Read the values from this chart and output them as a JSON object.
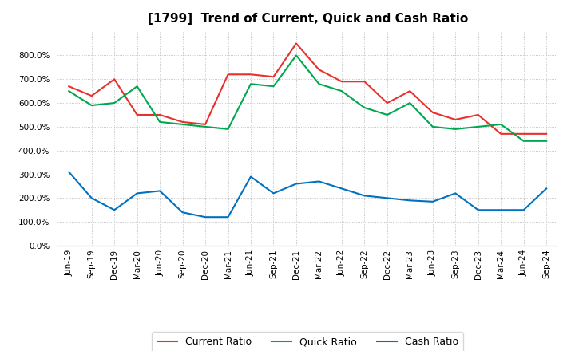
{
  "title": "[1799]  Trend of Current, Quick and Cash Ratio",
  "labels": [
    "Jun-19",
    "Sep-19",
    "Dec-19",
    "Mar-20",
    "Jun-20",
    "Sep-20",
    "Dec-20",
    "Mar-21",
    "Jun-21",
    "Sep-21",
    "Dec-21",
    "Mar-22",
    "Jun-22",
    "Sep-22",
    "Dec-22",
    "Mar-23",
    "Jun-23",
    "Sep-23",
    "Dec-23",
    "Mar-24",
    "Jun-24",
    "Sep-24"
  ],
  "current_ratio": [
    670,
    630,
    700,
    550,
    550,
    520,
    510,
    720,
    720,
    710,
    850,
    740,
    690,
    690,
    600,
    650,
    560,
    530,
    550,
    470,
    470,
    470
  ],
  "quick_ratio": [
    650,
    590,
    600,
    670,
    520,
    510,
    500,
    490,
    680,
    670,
    800,
    680,
    650,
    580,
    550,
    600,
    500,
    490,
    500,
    510,
    440,
    440
  ],
  "cash_ratio": [
    310,
    200,
    150,
    220,
    230,
    140,
    120,
    120,
    290,
    220,
    260,
    270,
    240,
    210,
    200,
    190,
    185,
    220,
    150,
    150,
    150,
    240
  ],
  "current_color": "#e8312a",
  "quick_color": "#00a650",
  "cash_color": "#0070c0",
  "ylim": [
    0,
    900
  ],
  "yticks": [
    0,
    100,
    200,
    300,
    400,
    500,
    600,
    700,
    800
  ],
  "background_color": "#ffffff",
  "plot_bg_color": "#ffffff",
  "grid_color": "#aaaaaa",
  "line_width": 1.5,
  "title_fontsize": 11,
  "tick_fontsize": 7.5,
  "legend_fontsize": 9
}
